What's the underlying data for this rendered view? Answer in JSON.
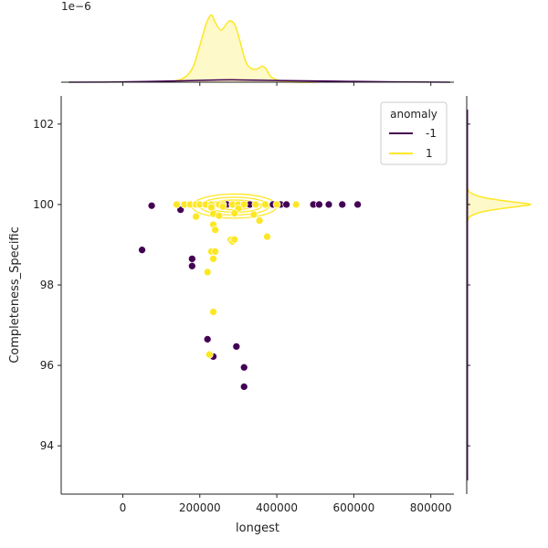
{
  "chart_data": {
    "type": "scatter",
    "xlabel": "longest",
    "ylabel": "Completeness_Specific",
    "xlim": [
      -160000,
      860000
    ],
    "ylim": [
      92.8,
      102.7
    ],
    "xticks": [
      0,
      200000,
      400000,
      600000,
      800000
    ],
    "xtick_labels": [
      "0",
      "200000",
      "400000",
      "600000",
      "800000"
    ],
    "yticks": [
      94,
      96,
      98,
      100,
      102
    ],
    "ytick_labels": [
      "94",
      "96",
      "98",
      "100",
      "102"
    ],
    "top_marginal_offset_label": "1e−6",
    "legend": {
      "title": "anomaly",
      "placement": "top-right",
      "entries": [
        {
          "label": "-1",
          "color": "#440154"
        },
        {
          "label": "1",
          "color": "#fde725"
        }
      ]
    },
    "series": [
      {
        "name": "-1",
        "color": "#440154",
        "points": [
          [
            75000,
            99.97
          ],
          [
            150000,
            99.87
          ],
          [
            270000,
            100.0
          ],
          [
            330000,
            100.0
          ],
          [
            390000,
            100.0
          ],
          [
            410000,
            100.0
          ],
          [
            425000,
            100.0
          ],
          [
            495000,
            100.0
          ],
          [
            510000,
            100.0
          ],
          [
            535000,
            100.0
          ],
          [
            570000,
            100.0
          ],
          [
            610000,
            100.0
          ],
          [
            50000,
            98.87
          ],
          [
            180000,
            98.65
          ],
          [
            180000,
            98.47
          ],
          [
            220000,
            96.65
          ],
          [
            225000,
            96.27
          ],
          [
            235000,
            96.22
          ],
          [
            295000,
            96.47
          ],
          [
            315000,
            95.95
          ],
          [
            315000,
            95.47
          ]
        ]
      },
      {
        "name": "1",
        "color": "#fde725",
        "points": [
          [
            140000,
            100.0
          ],
          [
            160000,
            100.0
          ],
          [
            175000,
            100.0
          ],
          [
            190000,
            100.0
          ],
          [
            200000,
            100.0
          ],
          [
            215000,
            100.0
          ],
          [
            230000,
            100.0
          ],
          [
            250000,
            100.0
          ],
          [
            260000,
            100.0
          ],
          [
            285000,
            100.0
          ],
          [
            300000,
            100.0
          ],
          [
            315000,
            100.0
          ],
          [
            345000,
            100.0
          ],
          [
            370000,
            100.0
          ],
          [
            400000,
            100.0
          ],
          [
            450000,
            100.0
          ],
          [
            230000,
            99.93
          ],
          [
            260000,
            99.95
          ],
          [
            300000,
            99.9
          ],
          [
            235000,
            99.77
          ],
          [
            190000,
            99.7
          ],
          [
            250000,
            99.72
          ],
          [
            290000,
            99.78
          ],
          [
            340000,
            99.75
          ],
          [
            355000,
            99.6
          ],
          [
            235000,
            99.5
          ],
          [
            240000,
            99.37
          ],
          [
            375000,
            99.2
          ],
          [
            280000,
            99.12
          ],
          [
            285000,
            99.08
          ],
          [
            290000,
            99.13
          ],
          [
            230000,
            98.83
          ],
          [
            240000,
            98.83
          ],
          [
            235000,
            98.65
          ],
          [
            220000,
            98.32
          ],
          [
            235000,
            97.33
          ],
          [
            225000,
            96.27
          ]
        ]
      }
    ],
    "kde_contour": {
      "series": "1",
      "center": [
        290000,
        99.96
      ],
      "radii": [
        [
          110000,
          0.3
        ],
        [
          90000,
          0.22
        ],
        [
          70000,
          0.15
        ],
        [
          45000,
          0.09
        ]
      ]
    },
    "top_marginal": {
      "series_1": {
        "x": [
          100000,
          150000,
          180000,
          200000,
          215000,
          225000,
          232000,
          240000,
          255000,
          270000,
          280000,
          292000,
          305000,
          320000,
          335000,
          350000,
          362000,
          372000,
          385000,
          410000,
          450000,
          500000
        ],
        "density": [
          0.0,
          0.04,
          0.2,
          0.55,
          0.85,
          0.98,
          1.0,
          0.9,
          0.78,
          0.88,
          0.92,
          0.85,
          0.6,
          0.3,
          0.2,
          0.2,
          0.24,
          0.2,
          0.08,
          0.02,
          0.0,
          0.0
        ]
      },
      "series_-1": {
        "x": [
          -140000,
          0,
          150000,
          250000,
          300000,
          400000,
          550000,
          700000,
          850000
        ],
        "density": [
          0.0,
          0.005,
          0.02,
          0.035,
          0.035,
          0.025,
          0.015,
          0.005,
          0.0
        ]
      }
    },
    "right_marginal": {
      "series_1": {
        "y": [
          99.5,
          99.7,
          99.82,
          99.9,
          99.96,
          100.0,
          100.04,
          100.1,
          100.18,
          100.3,
          100.5
        ],
        "density": [
          0.0,
          0.05,
          0.25,
          0.55,
          0.85,
          1.0,
          0.85,
          0.55,
          0.25,
          0.05,
          0.0
        ]
      }
    }
  }
}
